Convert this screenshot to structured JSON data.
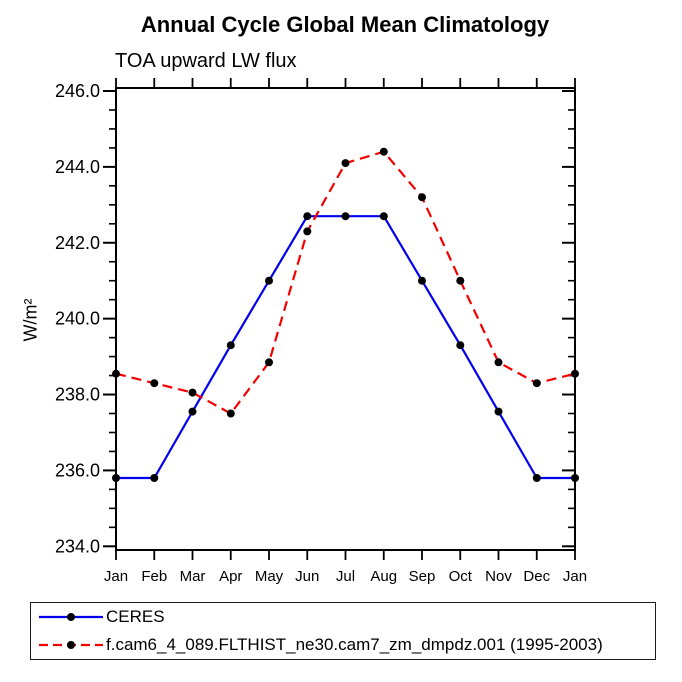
{
  "header": {
    "title": "Annual Cycle Global Mean Climatology",
    "subtitle": "TOA upward LW flux"
  },
  "axes": {
    "ylabel": "W/m²",
    "y_tick_labels": [
      "234.0",
      "236.0",
      "238.0",
      "240.0",
      "242.0",
      "244.0",
      "246.0"
    ],
    "x_tick_labels": [
      "Jan",
      "Feb",
      "Mar",
      "Apr",
      "May",
      "Jun",
      "Jul",
      "Aug",
      "Sep",
      "Oct",
      "Nov",
      "Dec",
      "Jan"
    ]
  },
  "legend": {
    "entries": [
      {
        "label": "CERES"
      },
      {
        "label": "f.cam6_4_089.FLTHIST_ne30.cam7_zm_dmpdz.001 (1995-2003)"
      }
    ]
  },
  "chart_data": {
    "type": "line",
    "title": "Annual Cycle Global Mean Climatology",
    "subtitle": "TOA upward LW flux",
    "xlabel": "",
    "ylabel": "W/m²",
    "categories": [
      "Jan",
      "Feb",
      "Mar",
      "Apr",
      "May",
      "Jun",
      "Jul",
      "Aug",
      "Sep",
      "Oct",
      "Nov",
      "Dec",
      "Jan"
    ],
    "series": [
      {
        "key": "ceres",
        "name": "CERES",
        "color": "#0000ee",
        "line_style": "solid",
        "marker": "filled-circle",
        "marker_color": "#000000",
        "values": [
          235.8,
          235.8,
          237.55,
          239.3,
          241.0,
          242.7,
          242.7,
          242.7,
          241.0,
          239.3,
          237.55,
          235.8,
          235.8
        ]
      },
      {
        "key": "model",
        "name": "f.cam6_4_089.FLTHIST_ne30.cam7_zm_dmpdz.001 (1995-2003)",
        "color": "#f40000",
        "line_style": "dashed",
        "marker": "filled-circle",
        "marker_color": "#000000",
        "values": [
          238.55,
          238.3,
          238.05,
          237.5,
          238.85,
          242.3,
          244.1,
          244.4,
          243.2,
          241.0,
          238.85,
          238.3,
          238.55
        ]
      }
    ],
    "ylim": [
      234.0,
      246.0
    ],
    "y_major_step": 2.0,
    "y_minor_step": 0.5,
    "grid": false,
    "legend_position": "bottom"
  }
}
